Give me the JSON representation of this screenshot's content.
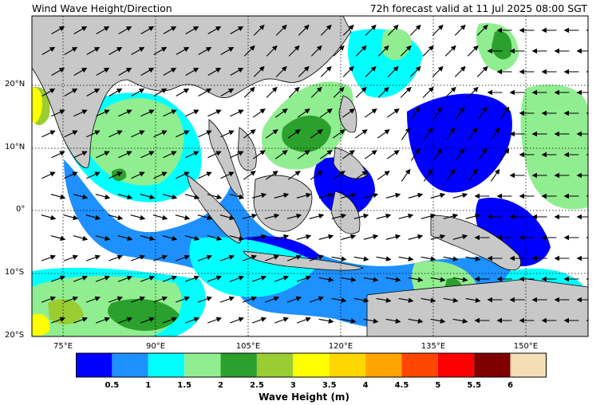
{
  "title_left": "Wind Wave Height/Direction",
  "title_right": "72h forecast valid at 11 Jul 2025 08:00 SGT",
  "lat_labels": [
    "20°N",
    "10°N",
    "0°",
    "10°S",
    "20°S"
  ],
  "lon_labels": [
    "75°E",
    "90°E",
    "105°E",
    "120°E",
    "135°E",
    "150°E"
  ],
  "colorbar": {
    "title": "Wave Height (m)",
    "ticks": [
      "0.5",
      "1",
      "1.5",
      "2",
      "2.5",
      "3",
      "3.5",
      "4",
      "4.5",
      "5",
      "5.5",
      "6"
    ],
    "colors": [
      "#0000ff",
      "#1e90ff",
      "#00ffff",
      "#90ee90",
      "#2ca02c",
      "#9acd32",
      "#ffff00",
      "#ffd700",
      "#ffa500",
      "#ff4500",
      "#ff0000",
      "#800000",
      "#f5deb3"
    ]
  },
  "colors": {
    "land": "#c8c8c8",
    "ocean_calm": "#ffffff"
  }
}
